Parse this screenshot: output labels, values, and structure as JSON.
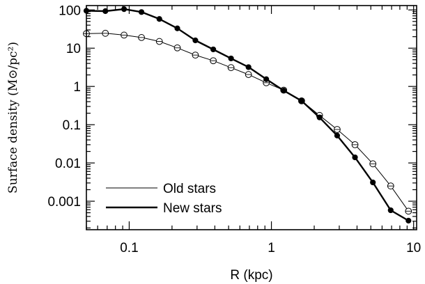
{
  "chart_data": {
    "type": "line",
    "xlabel": "R (kpc)",
    "ylabel": "Surface density (M⊙/pc²)",
    "x_scale": "log",
    "y_scale": "log",
    "xlim": [
      0.05,
      10.5
    ],
    "ylim": [
      0.00018,
      130
    ],
    "x_ticks": [
      {
        "value": 0.1,
        "label": "0.1"
      },
      {
        "value": 1,
        "label": "1"
      },
      {
        "value": 10,
        "label": "10"
      }
    ],
    "y_ticks": [
      {
        "value": 100,
        "label": "100"
      },
      {
        "value": 10,
        "label": "10"
      },
      {
        "value": 1,
        "label": "1"
      },
      {
        "value": 0.1,
        "label": "0.1"
      },
      {
        "value": 0.01,
        "label": "0.01"
      },
      {
        "value": 0.001,
        "label": "0.001"
      }
    ],
    "grid": false,
    "legend_position": "bottom-left",
    "series": [
      {
        "name": "Old stars",
        "marker": "open-circle",
        "line_weight": "thin",
        "x": [
          0.05,
          0.068,
          0.092,
          0.122,
          0.163,
          0.218,
          0.292,
          0.39,
          0.52,
          0.69,
          0.92,
          1.22,
          1.63,
          2.18,
          2.9,
          3.87,
          5.17,
          6.9,
          9.2
        ],
        "y": [
          24,
          24.5,
          22,
          19,
          15,
          10.2,
          6.6,
          4.7,
          3.1,
          2.05,
          1.25,
          0.8,
          0.42,
          0.175,
          0.075,
          0.03,
          0.0095,
          0.0025,
          0.00055
        ]
      },
      {
        "name": "New stars",
        "marker": "filled-circle",
        "line_weight": "thick",
        "x": [
          0.05,
          0.068,
          0.092,
          0.122,
          0.163,
          0.218,
          0.292,
          0.39,
          0.52,
          0.69,
          0.92,
          1.22,
          1.63,
          2.18,
          2.9,
          3.87,
          5.17,
          6.9,
          9.2
        ],
        "y": [
          95,
          93,
          105,
          88,
          58,
          33,
          16,
          9.3,
          5.4,
          3.2,
          1.55,
          0.78,
          0.42,
          0.155,
          0.052,
          0.014,
          0.0031,
          0.00058,
          0.00031
        ]
      }
    ]
  }
}
